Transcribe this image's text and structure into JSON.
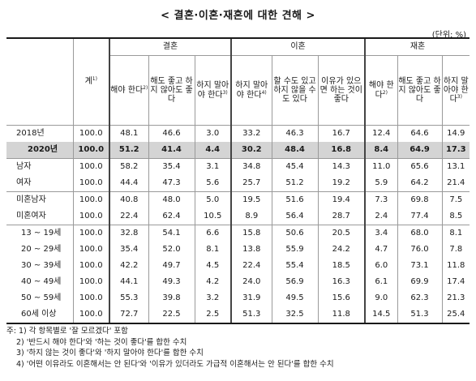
{
  "title": "< 결혼·이혼·재혼에 대한 견해 >",
  "unit": "(단위: %)",
  "groups": {
    "marriage": "결혼",
    "divorce": "이혼",
    "remarriage": "재혼"
  },
  "columns": {
    "total": "계",
    "total_sup": "1)",
    "m_should": "해야 한다",
    "m_should_sup": "2)",
    "m_either": "해도 좋고 하지 않아도 좋다",
    "m_shouldnot": "하지 말아야 한다",
    "m_shouldnot_sup": "3)",
    "d_shouldnot": "하지 말아야 한다",
    "d_shouldnot_sup": "4)",
    "d_can": "할 수도 있고 하지 않을 수도 있다",
    "d_reason": "이유가 있으면 하는 것이 좋다",
    "r_should": "해야 한다",
    "r_should_sup": "2)",
    "r_either": "해도 좋고 하지 않아도 좋다",
    "r_shouldnot": "하지 말아야 한다",
    "r_shouldnot_sup": "3)"
  },
  "rows": [
    {
      "label": "2018년",
      "total": "100.0",
      "values": [
        "48.1",
        "46.6",
        "3.0",
        "33.2",
        "46.3",
        "16.7",
        "12.4",
        "64.6",
        "14.9"
      ]
    },
    {
      "label": "2020년",
      "total": "100.0",
      "values": [
        "51.2",
        "41.4",
        "4.4",
        "30.2",
        "48.4",
        "16.8",
        "8.4",
        "64.9",
        "17.3"
      ]
    },
    {
      "label": "남자",
      "total": "100.0",
      "values": [
        "58.2",
        "35.4",
        "3.1",
        "34.8",
        "45.4",
        "14.3",
        "11.0",
        "65.6",
        "13.1"
      ]
    },
    {
      "label": "여자",
      "total": "100.0",
      "values": [
        "44.4",
        "47.3",
        "5.6",
        "25.7",
        "51.2",
        "19.2",
        "5.9",
        "64.2",
        "21.4"
      ]
    },
    {
      "label": "미혼남자",
      "total": "100.0",
      "values": [
        "40.8",
        "48.0",
        "5.0",
        "19.5",
        "51.6",
        "19.4",
        "7.3",
        "69.8",
        "7.5"
      ]
    },
    {
      "label": "미혼여자",
      "total": "100.0",
      "values": [
        "22.4",
        "62.4",
        "10.5",
        "8.9",
        "56.4",
        "28.7",
        "2.4",
        "77.4",
        "8.5"
      ]
    },
    {
      "label": "13 ~ 19세",
      "total": "100.0",
      "values": [
        "32.8",
        "54.1",
        "6.6",
        "15.8",
        "50.6",
        "20.5",
        "3.4",
        "68.0",
        "8.1"
      ]
    },
    {
      "label": "20 ~ 29세",
      "total": "100.0",
      "values": [
        "35.4",
        "52.0",
        "8.1",
        "13.8",
        "55.9",
        "24.2",
        "4.7",
        "76.0",
        "7.8"
      ]
    },
    {
      "label": "30 ~ 39세",
      "total": "100.0",
      "values": [
        "42.2",
        "49.7",
        "4.5",
        "22.4",
        "55.4",
        "18.5",
        "6.0",
        "73.1",
        "11.8"
      ]
    },
    {
      "label": "40 ~ 49세",
      "total": "100.0",
      "values": [
        "44.1",
        "49.3",
        "4.2",
        "24.0",
        "56.9",
        "16.3",
        "6.1",
        "69.9",
        "17.4"
      ]
    },
    {
      "label": "50 ~ 59세",
      "total": "100.0",
      "values": [
        "55.3",
        "39.8",
        "3.2",
        "31.9",
        "49.5",
        "15.6",
        "9.0",
        "62.3",
        "21.3"
      ]
    },
    {
      "label": "60세 이상",
      "total": "100.0",
      "values": [
        "72.7",
        "22.5",
        "2.5",
        "51.3",
        "32.5",
        "11.8",
        "14.5",
        "51.3",
        "25.4"
      ]
    }
  ],
  "notes": [
    "주: 1) 각 항목별로 '잘 모르겠다' 포함",
    "2) '반드시 해야 한다'와 '하는 것이 좋다'를 합한 수치",
    "3) '하지 않는 것이 좋다'와 '하지 말아야 한다'를 합한 수치",
    "4) '어떤 이유라도 이혼해서는 안 된다'와 '이유가 있더라도 가급적 이혼해서는 안 된다'를 합한 수치"
  ]
}
